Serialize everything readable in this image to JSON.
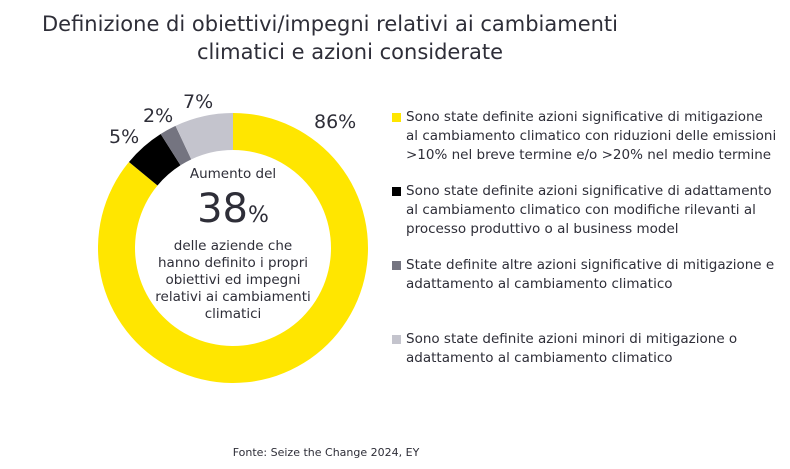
{
  "chart_data": {
    "type": "pie",
    "variant": "donut",
    "title": "Definizione di obiettivi/impegni relativi ai cambiamenti climatici e azioni considerate",
    "title_lines": [
      "Definizione di obiettivi/impegni relativi ai cambiamenti",
      "climatici e azioni considerate"
    ],
    "slices": [
      {
        "label": "Sono state definite azioni significative di mitigazione al cambiamento climatico con riduzioni delle emissioni >10% nel breve termine e/o >20% nel medio termine",
        "value": 86,
        "value_label": "86%",
        "color": "#FFE600",
        "legend_lines": [
          "Sono state definite azioni significative di mitigazione",
          "al cambiamento climatico con riduzioni delle emissioni",
          ">10% nel breve termine e/o >20% nel medio termine"
        ]
      },
      {
        "label": "Sono state definite azioni significative di adattamento al cambiamento climatico con modifiche rilevanti al processo produttivo o al business model",
        "value": 5,
        "value_label": "5%",
        "color": "#000000",
        "legend_lines": [
          "Sono state definite azioni significative di adattamento",
          "al cambiamento climatico con modifiche rilevanti al",
          "processo produttivo o al business model"
        ]
      },
      {
        "label": "State definite altre azioni significative di mitigazione e adattamento al cambiamento climatico",
        "value": 2,
        "value_label": "2%",
        "color": "#747480",
        "legend_lines": [
          "State definite altre azioni significative di mitigazione e",
          "adattamento al cambiamento climatico"
        ]
      },
      {
        "label": "Sono state definite azioni minori di mitigazione o adattamento al cambiamento climatico",
        "value": 7,
        "value_label": "7%",
        "color": "#C4C4CD",
        "legend_lines": [
          "Sono state definite azioni minori di mitigazione o",
          "adattamento al cambiamento climatico"
        ]
      }
    ],
    "legend_position": "right",
    "center": {
      "pre": "Aumento del",
      "number": "38",
      "unit": "%",
      "post_lines": [
        "delle aziende che",
        "hanno definito i propri",
        "obiettivi ed impegni",
        "relativi ai cambiamenti",
        "climatici"
      ]
    }
  },
  "source": "Fonte: Seize the Change 2024, EY"
}
